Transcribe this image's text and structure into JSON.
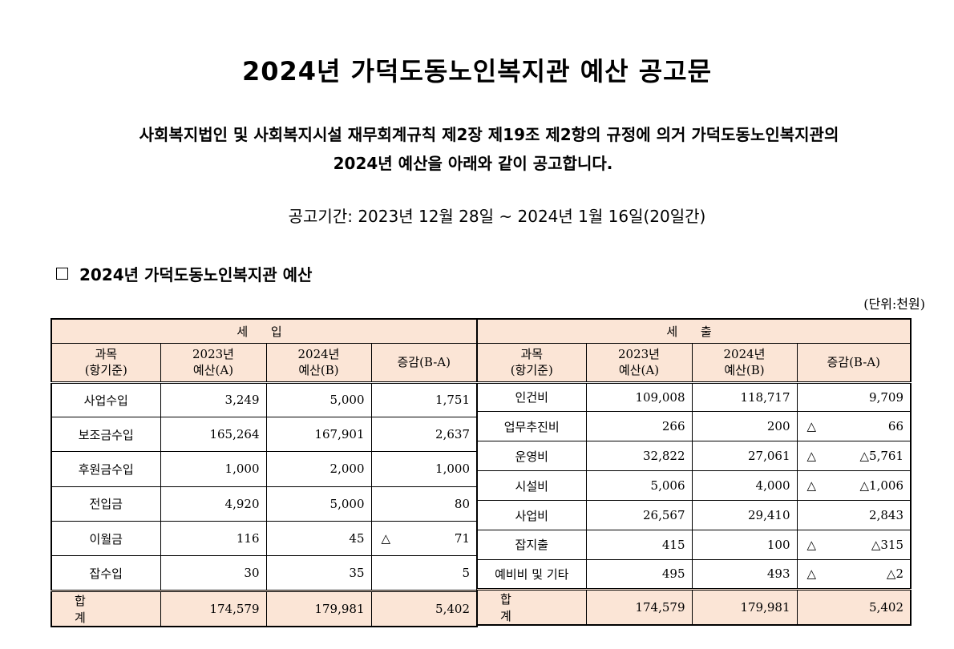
{
  "title": "2024년 가덕도동노인복지관 예산 공고문",
  "intro_line1": "사회복지법인 및 사회복지시설 재무회계규칙 제2장 제19조 제2항의 규정에 의거 가덕도동노인복지관의",
  "intro_line2": "2024년 예산을 아래와 같이 공고합니다.",
  "period": "공고기간: 2023년 12월 28일 ~ 2024년 1월 16일(20일간)",
  "section_title": "2024년 가덕도동노인복지관 예산",
  "unit": "(단위:천원)",
  "headers": {
    "subject_l1": "과목",
    "subject_l2": "(항기준)",
    "y2023_l1": "2023년",
    "y2023_l2": "예산(A)",
    "y2024_l1": "2024년",
    "y2024_l2": "예산(B)",
    "diff": "증감(B-A)"
  },
  "income": {
    "group_label": "세 입",
    "rows": [
      {
        "name": "사업수입",
        "y2023": "3,249",
        "y2024": "5,000",
        "mark": "",
        "diff": "1,751"
      },
      {
        "name": "보조금수입",
        "y2023": "165,264",
        "y2024": "167,901",
        "mark": "",
        "diff": "2,637"
      },
      {
        "name": "후원금수입",
        "y2023": "1,000",
        "y2024": "2,000",
        "mark": "",
        "diff": "1,000"
      },
      {
        "name": "전입금",
        "y2023": "4,920",
        "y2024": "5,000",
        "mark": "",
        "diff": "80"
      },
      {
        "name": "이월금",
        "y2023": "116",
        "y2024": "45",
        "mark": "△",
        "diff": "71"
      },
      {
        "name": "잡수입",
        "y2023": "30",
        "y2024": "35",
        "mark": "",
        "diff": "5"
      }
    ],
    "total": {
      "name": "합 계",
      "y2023": "174,579",
      "y2024": "179,981",
      "diff": "5,402"
    }
  },
  "expense": {
    "group_label": "세 출",
    "rows": [
      {
        "name": "인건비",
        "y2023": "109,008",
        "y2024": "118,717",
        "mark": "",
        "diff": "9,709"
      },
      {
        "name": "업무추진비",
        "y2023": "266",
        "y2024": "200",
        "mark": "△",
        "diff": "66"
      },
      {
        "name": "운영비",
        "y2023": "32,822",
        "y2024": "27,061",
        "mark": "△",
        "diff": "△5,761"
      },
      {
        "name": "시설비",
        "y2023": "5,006",
        "y2024": "4,000",
        "mark": "△",
        "diff": "△1,006"
      },
      {
        "name": "사업비",
        "y2023": "26,567",
        "y2024": "29,410",
        "mark": "",
        "diff": "2,843"
      },
      {
        "name": "잡지출",
        "y2023": "415",
        "y2024": "100",
        "mark": "△",
        "diff": "△315"
      },
      {
        "name": "예비비 및 기타",
        "y2023": "495",
        "y2024": "493",
        "mark": "△",
        "diff": "△2"
      }
    ],
    "total": {
      "name": "합 계",
      "y2023": "174,579",
      "y2024": "179,981",
      "diff": "5,402"
    }
  }
}
